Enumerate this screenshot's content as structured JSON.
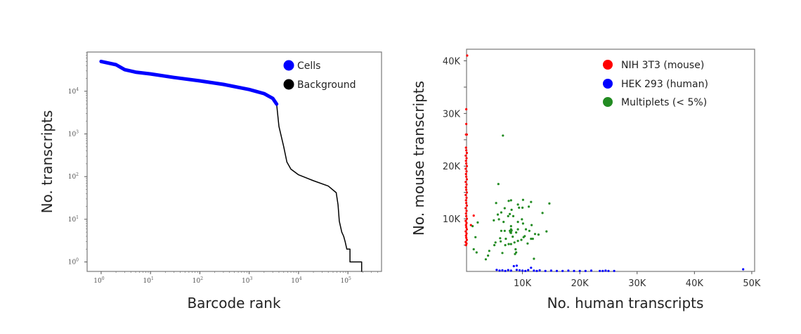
{
  "chart_data": [
    {
      "type": "line",
      "xlabel": "Barcode rank",
      "ylabel": "No. transcripts",
      "xscale": "log",
      "yscale": "log",
      "xlim": [
        0.52,
        480000
      ],
      "ylim": [
        0.6,
        83000
      ],
      "xticks": [
        {
          "v": 1,
          "e": "0"
        },
        {
          "v": 10,
          "e": "1"
        },
        {
          "v": 100,
          "e": "2"
        },
        {
          "v": 1000,
          "e": "3"
        },
        {
          "v": 10000,
          "e": "4"
        },
        {
          "v": 100000,
          "e": "5"
        }
      ],
      "yticks": [
        {
          "v": 1,
          "e": "0"
        },
        {
          "v": 10,
          "e": "1"
        },
        {
          "v": 100,
          "e": "2"
        },
        {
          "v": 1000,
          "e": "3"
        },
        {
          "v": 10000,
          "e": "4"
        }
      ],
      "tick_base": "10",
      "legend_position": "top-right",
      "grid": false,
      "series": [
        {
          "name": "Cells",
          "color": "#0000ff",
          "points": [
            [
              1,
              50000
            ],
            [
              2,
              42000
            ],
            [
              3,
              32000
            ],
            [
              5,
              28000
            ],
            [
              10,
              25500
            ],
            [
              30,
              21000
            ],
            [
              100,
              17500
            ],
            [
              300,
              14500
            ],
            [
              1000,
              11000
            ],
            [
              2000,
              8800
            ],
            [
              3000,
              6800
            ],
            [
              3600,
              5000
            ]
          ]
        },
        {
          "name": "Background",
          "color": "#000000",
          "points": [
            [
              3600,
              5000
            ],
            [
              4000,
              1500
            ],
            [
              5000,
              500
            ],
            [
              5800,
              220
            ],
            [
              7000,
              150
            ],
            [
              10000,
              110
            ],
            [
              20000,
              80
            ],
            [
              40000,
              60
            ],
            [
              58000,
              42
            ],
            [
              63000,
              22
            ],
            [
              67000,
              9
            ],
            [
              75000,
              5
            ],
            [
              82000,
              4
            ],
            [
              88000,
              3
            ],
            [
              95000,
              2
            ],
            [
              110000,
              2
            ],
            [
              110000,
              1
            ],
            [
              190000,
              1
            ],
            [
              190000,
              0.6
            ]
          ]
        }
      ]
    },
    {
      "type": "scatter",
      "xlabel": "No. human transcripts",
      "ylabel": "No. mouse transcripts",
      "xlim": [
        0,
        50500
      ],
      "ylim": [
        0,
        42200
      ],
      "xticks": [
        "10K",
        "20K",
        "30K",
        "40K",
        "50K"
      ],
      "xtick_values": [
        10000,
        20000,
        30000,
        40000,
        50000
      ],
      "yticks": [
        "10K",
        "20K",
        "30K",
        "40K"
      ],
      "ytick_values": [
        10000,
        20000,
        30000,
        40000
      ],
      "legend_position": "top-right",
      "grid": false,
      "series": [
        {
          "name": "NIH 3T3 (mouse)",
          "color": "#ff0000",
          "points": [
            [
              350,
              41000
            ],
            [
              200,
              30800
            ],
            [
              200,
              28000
            ],
            [
              150,
              26000
            ],
            [
              300,
              26000
            ],
            [
              1500,
              10600
            ],
            [
              1000,
              8800
            ],
            [
              150,
              5000
            ],
            [
              250,
              5300
            ],
            [
              100,
              5600
            ],
            [
              300,
              6000
            ],
            [
              200,
              6400
            ],
            [
              150,
              6800
            ],
            [
              250,
              7200
            ],
            [
              100,
              7600
            ],
            [
              300,
              8000
            ],
            [
              200,
              8400
            ],
            [
              150,
              8800
            ],
            [
              250,
              9200
            ],
            [
              100,
              9600
            ],
            [
              300,
              10000
            ],
            [
              200,
              10500
            ],
            [
              150,
              11000
            ],
            [
              250,
              11500
            ],
            [
              100,
              12000
            ],
            [
              300,
              12500
            ],
            [
              200,
              13000
            ],
            [
              150,
              13500
            ],
            [
              250,
              14000
            ],
            [
              100,
              14500
            ],
            [
              300,
              15000
            ],
            [
              200,
              15500
            ],
            [
              150,
              16000
            ],
            [
              250,
              16500
            ],
            [
              100,
              17000
            ],
            [
              300,
              17500
            ],
            [
              200,
              18000
            ],
            [
              150,
              18500
            ],
            [
              250,
              19000
            ],
            [
              100,
              19500
            ],
            [
              300,
              20000
            ],
            [
              200,
              20500
            ],
            [
              150,
              21000
            ],
            [
              250,
              21500
            ],
            [
              100,
              22000
            ],
            [
              300,
              22500
            ],
            [
              200,
              23000
            ],
            [
              150,
              23500
            ]
          ]
        },
        {
          "name": "HEK 293 (human)",
          "color": "#0000ff",
          "points": [
            [
              5500,
              300
            ],
            [
              6000,
              150
            ],
            [
              6500,
              200
            ],
            [
              7000,
              100
            ],
            [
              7500,
              250
            ],
            [
              8000,
              150
            ],
            [
              8500,
              1000
            ],
            [
              9000,
              1100
            ],
            [
              9000,
              300
            ],
            [
              9500,
              200
            ],
            [
              10000,
              150
            ],
            [
              10500,
              100
            ],
            [
              11000,
              250
            ],
            [
              11500,
              700
            ],
            [
              12000,
              150
            ],
            [
              12500,
              100
            ],
            [
              13000,
              200
            ],
            [
              14000,
              100
            ],
            [
              15000,
              150
            ],
            [
              16000,
              100
            ],
            [
              17000,
              100
            ],
            [
              18000,
              150
            ],
            [
              19000,
              100
            ],
            [
              20000,
              100
            ],
            [
              21000,
              100
            ],
            [
              22000,
              150
            ],
            [
              23500,
              100
            ],
            [
              24000,
              100
            ],
            [
              24500,
              150
            ],
            [
              25000,
              100
            ],
            [
              26000,
              100
            ],
            [
              48500,
              400
            ]
          ]
        },
        {
          "name": "Multiplets (< 5%)",
          "color": "#228b22",
          "points": [
            [
              6600,
              25800
            ],
            [
              5800,
              16600
            ],
            [
              5400,
              13000
            ],
            [
              7600,
              13400
            ],
            [
              8000,
              13500
            ],
            [
              10100,
              13600
            ],
            [
              11500,
              13200
            ],
            [
              14700,
              12900
            ],
            [
              9200,
              12700
            ],
            [
              10000,
              12100
            ],
            [
              9400,
              12100
            ],
            [
              11100,
              12300
            ],
            [
              6900,
              12000
            ],
            [
              8100,
              11700
            ],
            [
              6300,
              11200
            ],
            [
              5700,
              10800
            ],
            [
              7800,
              10900
            ],
            [
              13500,
              11100
            ],
            [
              7500,
              10500
            ],
            [
              8400,
              10500
            ],
            [
              5000,
              9700
            ],
            [
              5900,
              9900
            ],
            [
              6700,
              9400
            ],
            [
              9900,
              9900
            ],
            [
              9200,
              9400
            ],
            [
              10100,
              9100
            ],
            [
              8000,
              8600
            ],
            [
              11600,
              8800
            ],
            [
              2200,
              9300
            ],
            [
              1300,
              8600
            ],
            [
              6300,
              7700
            ],
            [
              6900,
              7700
            ],
            [
              8000,
              8000
            ],
            [
              9200,
              8000
            ],
            [
              10600,
              8000
            ],
            [
              11200,
              7700
            ],
            [
              14200,
              7600
            ],
            [
              8000,
              7300
            ],
            [
              8900,
              7400
            ],
            [
              10400,
              6700
            ],
            [
              12200,
              7100
            ],
            [
              12800,
              7000
            ],
            [
              1800,
              6500
            ],
            [
              6100,
              6300
            ],
            [
              7100,
              6200
            ],
            [
              8300,
              6600
            ],
            [
              10200,
              6500
            ],
            [
              11500,
              6200
            ],
            [
              11800,
              6200
            ],
            [
              6200,
              5700
            ],
            [
              7600,
              5200
            ],
            [
              8000,
              5200
            ],
            [
              8600,
              5500
            ],
            [
              9200,
              5800
            ],
            [
              9800,
              6000
            ],
            [
              10900,
              5300
            ],
            [
              5300,
              5500
            ],
            [
              5100,
              5000
            ],
            [
              7000,
              5000
            ],
            [
              1500,
              4200
            ],
            [
              2000,
              3600
            ],
            [
              4200,
              3900
            ],
            [
              8800,
              4200
            ],
            [
              8900,
              3600
            ],
            [
              8700,
              3300
            ],
            [
              6500,
              3500
            ],
            [
              4000,
              3000
            ],
            [
              3600,
              2300
            ],
            [
              12000,
              2400
            ],
            [
              8000,
              7600
            ],
            [
              7900,
              7400
            ],
            [
              8100,
              7800
            ],
            [
              7800,
              7700
            ]
          ]
        }
      ]
    }
  ]
}
